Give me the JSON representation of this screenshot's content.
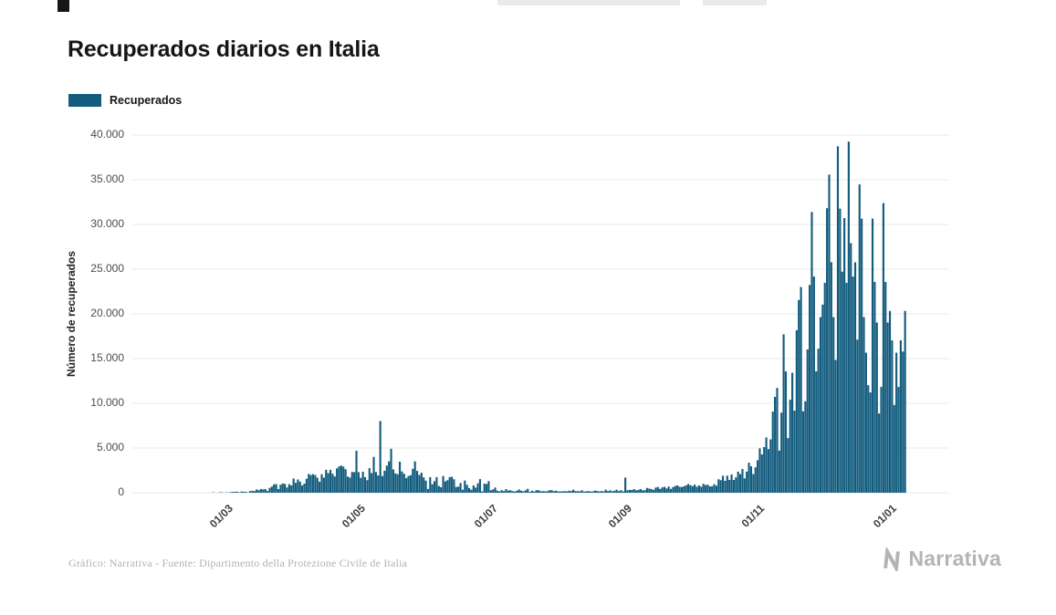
{
  "title": "Recuperados diarios en Italia",
  "legend": {
    "label": "Recuperados",
    "color": "#135c7e"
  },
  "footer": {
    "credit": "Gráfico: Narrativa - Fuente: Dipartimento della Protezione Civile de Italia",
    "brand": "Narrativa"
  },
  "chart_data": {
    "type": "bar",
    "title": "Recuperados diarios en Italia",
    "series_name": "Recuperados",
    "xlabel": "",
    "ylabel": "Número de recuperados",
    "ylim": [
      0,
      40000
    ],
    "grid": "horizontal",
    "legend_position": "top-left",
    "bar_color": "#135c7e",
    "start_date": "2020-01-22",
    "frequency": "daily",
    "y_ticks": [
      {
        "value": 0,
        "label": "0"
      },
      {
        "value": 5000,
        "label": "5.000"
      },
      {
        "value": 10000,
        "label": "10.000"
      },
      {
        "value": 15000,
        "label": "15.000"
      },
      {
        "value": 20000,
        "label": "20.000"
      },
      {
        "value": 25000,
        "label": "25.000"
      },
      {
        "value": 30000,
        "label": "30.000"
      },
      {
        "value": 35000,
        "label": "35.000"
      },
      {
        "value": 40000,
        "label": "40.000"
      }
    ],
    "x_ticks": [
      {
        "label": "01/03",
        "day_index": 39
      },
      {
        "label": "01/05",
        "day_index": 100
      },
      {
        "label": "01/07",
        "day_index": 161
      },
      {
        "label": "01/09",
        "day_index": 223
      },
      {
        "label": "01/11",
        "day_index": 284
      },
      {
        "label": "01/01",
        "day_index": 345
      }
    ],
    "values": [
      0,
      0,
      0,
      0,
      0,
      0,
      0,
      0,
      0,
      0,
      0,
      0,
      0,
      0,
      0,
      0,
      0,
      0,
      0,
      0,
      0,
      0,
      0,
      0,
      0,
      0,
      0,
      0,
      0,
      0,
      1,
      1,
      2,
      44,
      2,
      3,
      42,
      44,
      4,
      37,
      17,
      76,
      84,
      107,
      112,
      45,
      138,
      106,
      102,
      41,
      181,
      214,
      181,
      369,
      281,
      415,
      369,
      414,
      192,
      546,
      689,
      943,
      952,
      408,
      894,
      1036,
      999,
      589,
      952,
      819,
      1590,
      1109,
      1480,
      1238,
      819,
      1022,
      1555,
      2099,
      1979,
      2079,
      1985,
      1677,
      1224,
      2072,
      1695,
      2563,
      2200,
      2563,
      2128,
      1822,
      2723,
      2943,
      3033,
      2922,
      2622,
      1808,
      1696,
      2317,
      2311,
      4693,
      2304,
      1665,
      2352,
      1740,
      1401,
      2747,
      2194,
      4008,
      2317,
      1939,
      8014,
      1862,
      2452,
      3031,
      3503,
      4917,
      2605,
      2159,
      2075,
      3469,
      2377,
      2120,
      1639,
      1874,
      1964,
      2677,
      3503,
      2443,
      1976,
      2240,
      1717,
      1355,
      416,
      1737,
      957,
      1297,
      1747,
      747,
      615,
      1866,
      1268,
      1399,
      1747,
      1780,
      1505,
      640,
      680,
      1089,
      331,
      1363,
      880,
      526,
      338,
      824,
      577,
      1064,
      1526,
      148,
      1017,
      969,
      1293,
      269,
      366,
      574,
      223,
      154,
      295,
      174,
      396,
      245,
      276,
      188,
      134,
      230,
      356,
      230,
      152,
      269,
      442,
      107,
      213,
      143,
      288,
      275,
      175,
      171,
      163,
      170,
      275,
      288,
      175,
      223,
      155,
      138,
      159,
      183,
      148,
      230,
      181,
      340,
      182,
      172,
      168,
      276,
      123,
      163,
      182,
      141,
      150,
      238,
      199,
      148,
      183,
      157,
      348,
      182,
      269,
      163,
      223,
      340,
      182,
      276,
      148,
      1688,
      275,
      318,
      304,
      406,
      268,
      316,
      414,
      271,
      285,
      535,
      466,
      406,
      316,
      575,
      643,
      424,
      594,
      665,
      481,
      696,
      423,
      635,
      746,
      816,
      669,
      635,
      715,
      824,
      975,
      845,
      736,
      910,
      663,
      817,
      676,
      1002,
      850,
      908,
      714,
      725,
      958,
      789,
      1510,
      1401,
      1899,
      1327,
      1908,
      1434,
      2046,
      1427,
      1718,
      2352,
      2086,
      2656,
      1607,
      2363,
      3362,
      2954,
      2086,
      2845,
      3637,
      4961,
      4285,
      5103,
      6183,
      4872,
      5966,
      9071,
      10715,
      11717,
      4717,
      8960,
      17717,
      13574,
      6109,
      10407,
      13416,
      9178,
      18173,
      21554,
      23004,
      9098,
      10223,
      16026,
      23232,
      31395,
      24169,
      13574,
      16110,
      19638,
      21035,
      23474,
      31819,
      35574,
      25786,
      19638,
      14842,
      38740,
      31772,
      24728,
      30715,
      23474,
      39266,
      27913,
      24169,
      25768,
      17122,
      34477,
      30650,
      19638,
      15659,
      12030,
      11212,
      30657,
      23571,
      19037,
      8861,
      11831,
      32386,
      23571,
      19037,
      20331,
      17044,
      9809,
      15659,
      11831,
      17044,
      15791,
      20331
    ]
  }
}
